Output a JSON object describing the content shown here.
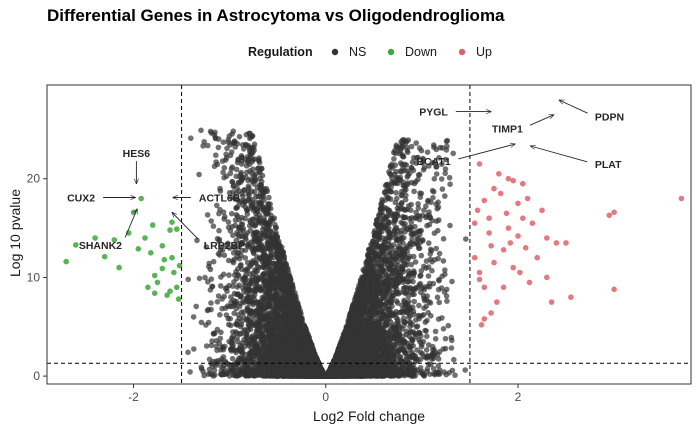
{
  "chart_data": {
    "type": "scatter",
    "title": "Differential Genes in Astrocytoma vs Oligodendroglioma",
    "xlabel": "Log2 Fold change",
    "ylabel": "Log 10 pvalue",
    "xlim": [
      -2.9,
      3.8
    ],
    "ylim": [
      -0.8,
      29.5
    ],
    "x_ticks": [
      -2,
      0,
      2
    ],
    "y_ticks": [
      0,
      10,
      20
    ],
    "thresholds": {
      "x": [
        -1.5,
        1.5
      ],
      "y": 1.3
    },
    "legend": {
      "title": "Regulation",
      "position": "top",
      "entries": [
        {
          "label": "NS",
          "color": "#333333"
        },
        {
          "label": "Down",
          "color": "#3aa935"
        },
        {
          "label": "Up",
          "color": "#e0606a"
        }
      ]
    },
    "ns_cloud": {
      "description_points_count": 9000,
      "peak_left_y": 25,
      "peak_right_y": 24
    },
    "series": [
      {
        "name": "Down",
        "color": "#3aa935",
        "points": [
          [
            -2.7,
            11.6
          ],
          [
            -2.6,
            13.3
          ],
          [
            -2.4,
            14.0
          ],
          [
            -2.3,
            12.1
          ],
          [
            -2.2,
            13.8
          ],
          [
            -2.15,
            11.0
          ],
          [
            -2.05,
            14.5
          ],
          [
            -2.0,
            16.6
          ],
          [
            -1.95,
            12.9
          ],
          [
            -1.92,
            18.0
          ],
          [
            -1.88,
            14.0
          ],
          [
            -1.85,
            9.0
          ],
          [
            -1.82,
            12.5
          ],
          [
            -1.8,
            15.3
          ],
          [
            -1.78,
            10.2
          ],
          [
            -1.75,
            9.5
          ],
          [
            -1.7,
            13.2
          ],
          [
            -1.68,
            11.8
          ],
          [
            -1.65,
            8.2
          ],
          [
            -1.62,
            14.8
          ],
          [
            -1.6,
            12.0
          ],
          [
            -1.58,
            10.5
          ],
          [
            -1.55,
            9.0
          ],
          [
            -1.53,
            7.8
          ],
          [
            -1.52,
            11.2
          ],
          [
            -1.6,
            15.6
          ],
          [
            -1.55,
            14.9
          ],
          [
            -1.62,
            8.6
          ],
          [
            -1.7,
            10.9
          ],
          [
            -1.78,
            8.4
          ]
        ]
      },
      {
        "name": "Up",
        "color": "#e0606a",
        "points": [
          [
            1.55,
            15.5
          ],
          [
            1.55,
            12.0
          ],
          [
            1.6,
            10.5
          ],
          [
            1.6,
            9.8
          ],
          [
            1.65,
            9.0
          ],
          [
            1.65,
            17.8
          ],
          [
            1.7,
            16.0
          ],
          [
            1.7,
            14.5
          ],
          [
            1.72,
            13.2
          ],
          [
            1.75,
            19.0
          ],
          [
            1.75,
            11.5
          ],
          [
            1.78,
            7.5
          ],
          [
            1.8,
            20.5
          ],
          [
            1.82,
            18.5
          ],
          [
            1.85,
            12.8
          ],
          [
            1.85,
            9.0
          ],
          [
            1.88,
            16.5
          ],
          [
            1.9,
            15.0
          ],
          [
            1.92,
            13.5
          ],
          [
            1.95,
            19.8
          ],
          [
            1.95,
            11.0
          ],
          [
            2.0,
            17.5
          ],
          [
            2.0,
            14.2
          ],
          [
            2.02,
            10.5
          ],
          [
            2.05,
            16.0
          ],
          [
            2.08,
            13.0
          ],
          [
            2.1,
            18.0
          ],
          [
            2.12,
            9.5
          ],
          [
            2.15,
            15.5
          ],
          [
            2.2,
            12.0
          ],
          [
            2.25,
            16.8
          ],
          [
            2.3,
            14.0
          ],
          [
            2.3,
            10.0
          ],
          [
            2.35,
            7.5
          ],
          [
            2.4,
            13.5
          ],
          [
            2.5,
            13.5
          ],
          [
            2.55,
            8.0
          ],
          [
            2.95,
            16.3
          ],
          [
            3.0,
            16.6
          ],
          [
            3.0,
            8.8
          ],
          [
            3.7,
            18.0
          ],
          [
            1.6,
            21.5
          ],
          [
            1.58,
            16.8
          ],
          [
            1.62,
            5.2
          ],
          [
            1.65,
            5.8
          ],
          [
            1.72,
            6.4
          ],
          [
            1.9,
            20.0
          ],
          [
            2.05,
            19.5
          ]
        ]
      }
    ],
    "labeled_genes": [
      {
        "label": "HES6",
        "point": [
          -1.97,
          19.2
        ],
        "text": [
          -1.97,
          22.6
        ]
      },
      {
        "label": "CUX2",
        "point": [
          -1.95,
          18.1
        ],
        "text": [
          -2.4,
          18.1
        ]
      },
      {
        "label": "ACTL6B",
        "point": [
          -1.62,
          18.1
        ],
        "text": [
          -1.32,
          18.1
        ]
      },
      {
        "label": "SHANK2",
        "point": [
          -1.95,
          17.2
        ],
        "text": [
          -2.12,
          13.3
        ]
      },
      {
        "label": "LRP2BP",
        "point": [
          -1.62,
          16.8
        ],
        "text": [
          -1.27,
          13.3
        ]
      },
      {
        "label": "PYGL",
        "point": [
          1.75,
          26.8
        ],
        "text": [
          1.27,
          26.8
        ]
      },
      {
        "label": "TIMP1",
        "point": [
          2.4,
          26.6
        ],
        "text": [
          2.05,
          25.1
        ]
      },
      {
        "label": "PDPN",
        "point": [
          2.4,
          28.1
        ],
        "text": [
          2.8,
          26.3
        ]
      },
      {
        "label": "BCAT1",
        "point": [
          2.0,
          23.6
        ],
        "text": [
          1.3,
          21.8
        ]
      },
      {
        "label": "PLAT",
        "point": [
          2.1,
          23.4
        ],
        "text": [
          2.8,
          21.5
        ]
      }
    ]
  },
  "colors": {
    "ns": "#333333",
    "threshold": "#000000",
    "panel_border": "#333333"
  }
}
